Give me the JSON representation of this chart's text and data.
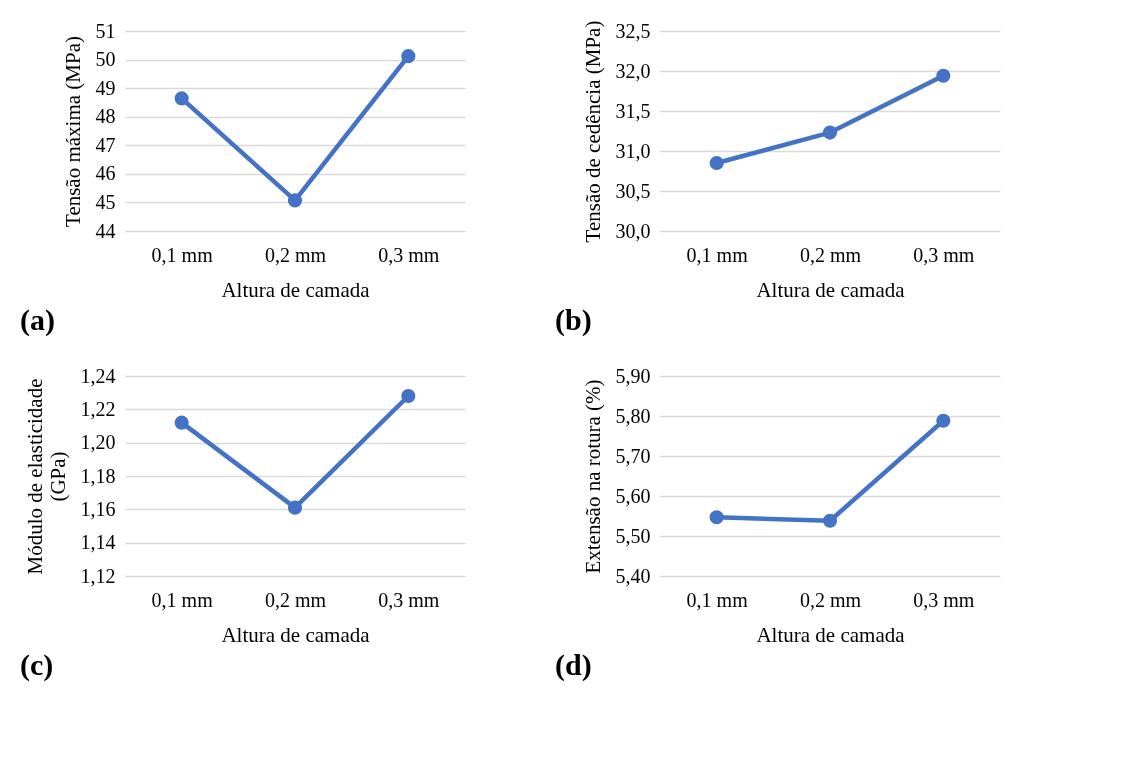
{
  "chart_data": [
    {
      "type": "line",
      "categories": [
        "0,1 mm",
        "0,2 mm",
        "0,3 mm"
      ],
      "xlabel": "Altura de camada",
      "ylabel": "Tensão máxima (MPa)",
      "series": [
        {
          "color": "#4472c4",
          "values": [
            48.64,
            45.07,
            50.12
          ]
        }
      ],
      "ylim": [
        44,
        51
      ],
      "yticks": [
        44,
        45,
        46,
        47,
        48,
        49,
        50,
        51
      ],
      "grid": "y",
      "marker": "circle",
      "line_style": "solid",
      "annotations": [
        "(a)"
      ]
    },
    {
      "type": "line",
      "categories": [
        "0,1 mm",
        "0,2 mm",
        "0,3 mm"
      ],
      "xlabel": "Altura de camada",
      "ylabel": "Tensão de cedência (MPa)",
      "series": [
        {
          "color": "#4472c4",
          "values": [
            30.85,
            31.23,
            31.94
          ]
        }
      ],
      "ylim": [
        30,
        32.5
      ],
      "yticks": [
        {
          "value": 30,
          "label": "30,0"
        },
        {
          "value": 30.5,
          "label": "30,5"
        },
        {
          "value": 31,
          "label": "31,0"
        },
        {
          "value": 31.5,
          "label": "31,5"
        },
        {
          "value": 32,
          "label": "32,0"
        },
        {
          "value": 32.5,
          "label": "32,5"
        }
      ],
      "grid": "y",
      "marker": "circle",
      "line_style": "solid",
      "annotations": [
        "(b)"
      ]
    },
    {
      "type": "line",
      "categories": [
        "0,1 mm",
        "0,2 mm",
        "0,3 mm"
      ],
      "xlabel": "Altura de camada",
      "ylabel": "Módulo de elasticidade\n(GPa)",
      "series": [
        {
          "color": "#4472c4",
          "values": [
            1.212,
            1.161,
            1.228
          ]
        }
      ],
      "ylim": [
        1.12,
        1.24
      ],
      "yticks": [
        {
          "value": 1.12,
          "label": "1,12"
        },
        {
          "value": 1.14,
          "label": "1,14"
        },
        {
          "value": 1.16,
          "label": "1,16"
        },
        {
          "value": 1.18,
          "label": "1,18"
        },
        {
          "value": 1.2,
          "label": "1,20"
        },
        {
          "value": 1.22,
          "label": "1,22"
        },
        {
          "value": 1.24,
          "label": "1,24"
        }
      ],
      "grid": "y",
      "marker": "circle",
      "line_style": "solid",
      "annotations": [
        "(c)"
      ]
    },
    {
      "type": "line",
      "categories": [
        "0,1 mm",
        "0,2 mm",
        "0,3 mm"
      ],
      "xlabel": "Altura de camada",
      "ylabel": "Extensão na rotura (%)",
      "series": [
        {
          "color": "#4472c4",
          "values": [
            5.547,
            5.538,
            5.788
          ]
        }
      ],
      "ylim": [
        5.4,
        5.9
      ],
      "yticks": [
        {
          "value": 5.4,
          "label": "5,40"
        },
        {
          "value": 5.5,
          "label": "5,50"
        },
        {
          "value": 5.6,
          "label": "5,60"
        },
        {
          "value": 5.7,
          "label": "5,70"
        },
        {
          "value": 5.8,
          "label": "5,80"
        },
        {
          "value": 5.9,
          "label": "5,90"
        }
      ],
      "grid": "y",
      "marker": "circle",
      "line_style": "solid",
      "annotations": [
        "(d)"
      ]
    }
  ]
}
